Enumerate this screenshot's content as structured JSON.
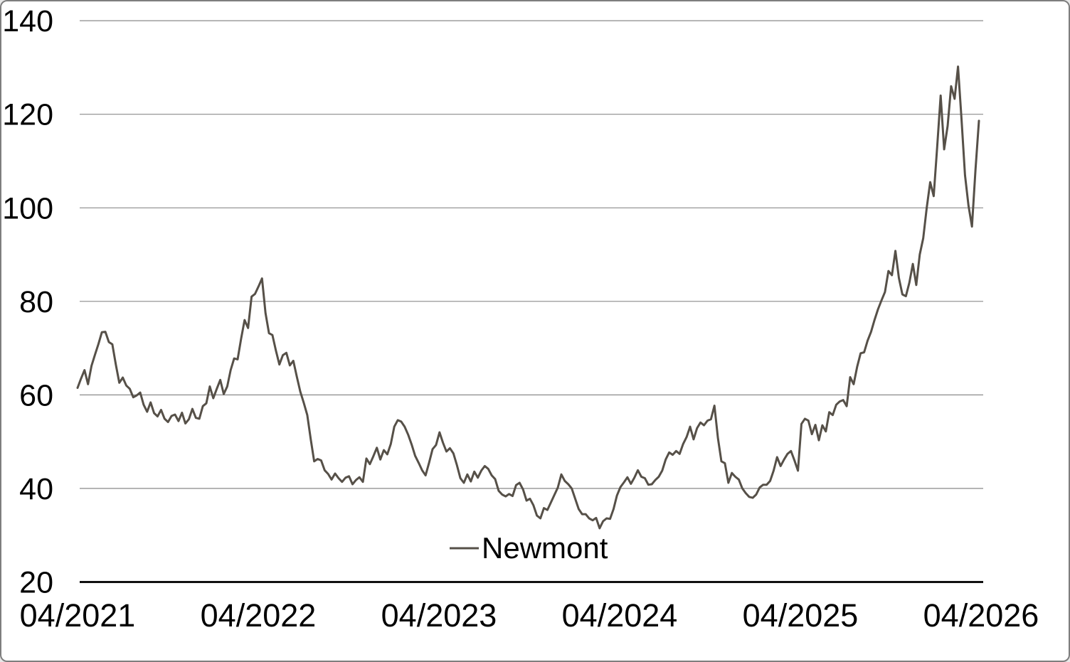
{
  "colors": {
    "background": "#ffffff",
    "frame_border": "#7e7e7e",
    "gridline": "#8a8a8a",
    "axis": "#111111",
    "text": "#000000",
    "series_line": "#565048"
  },
  "legend": {
    "label": "Newmont"
  },
  "chart_data": {
    "type": "line",
    "title": "",
    "xlabel": "",
    "ylabel": "",
    "grid": "horizontal-only",
    "x_axis": {
      "tick_labels": [
        "04/2021",
        "04/2022",
        "04/2023",
        "04/2024",
        "04/2025",
        "04/2026"
      ],
      "start": "04/2021",
      "end": "04/2026",
      "frequency": "weekly"
    },
    "y_axis": {
      "ticks": [
        140,
        120,
        100,
        80,
        60,
        40,
        20
      ],
      "range": [
        20,
        140
      ]
    },
    "legend": {
      "position": "bottom-center",
      "entries": [
        "Newmont"
      ]
    },
    "series": [
      {
        "name": "Newmont",
        "color": "#565048",
        "values": [
          61.5,
          63.5,
          65.3,
          62.3,
          66.2,
          68.6,
          70.9,
          73.4,
          73.5,
          71.3,
          70.8,
          66.5,
          62.6,
          63.7,
          62.0,
          61.3,
          59.5,
          59.9,
          60.5,
          57.9,
          56.4,
          58.4,
          56.1,
          55.4,
          56.8,
          54.9,
          54.2,
          55.5,
          55.8,
          54.4,
          56.2,
          53.9,
          54.8,
          57.0,
          55.1,
          54.9,
          57.6,
          58.2,
          61.8,
          59.3,
          61.3,
          63.2,
          60.2,
          61.8,
          65.3,
          67.8,
          67.6,
          72.0,
          76.0,
          74.3,
          81.0,
          81.6,
          83.2,
          84.9,
          77.5,
          73.2,
          72.8,
          69.5,
          66.5,
          68.5,
          69.0,
          66.3,
          67.3,
          63.9,
          60.7,
          58.3,
          55.7,
          50.5,
          45.8,
          46.3,
          46.0,
          43.9,
          43.1,
          41.9,
          43.2,
          42.2,
          41.4,
          42.3,
          42.6,
          40.9,
          41.8,
          42.4,
          41.4,
          46.4,
          45.2,
          46.9,
          48.7,
          46.2,
          48.2,
          47.3,
          49.5,
          53.2,
          54.6,
          54.3,
          53.2,
          51.5,
          49.4,
          47.0,
          45.5,
          43.9,
          42.8,
          45.5,
          48.4,
          49.3,
          52.0,
          49.8,
          47.9,
          48.6,
          47.5,
          45.0,
          42.2,
          41.2,
          43.0,
          41.5,
          43.6,
          42.3,
          43.8,
          44.8,
          44.2,
          42.8,
          42.0,
          39.5,
          38.7,
          38.3,
          38.8,
          38.4,
          40.7,
          41.2,
          39.8,
          37.4,
          37.8,
          36.4,
          34.2,
          33.6,
          35.8,
          35.4,
          37.0,
          38.6,
          40.2,
          43.0,
          41.6,
          40.9,
          40.0,
          37.8,
          35.6,
          34.5,
          34.5,
          33.6,
          33.2,
          33.7,
          31.5,
          33.0,
          33.6,
          33.5,
          35.6,
          38.5,
          40.3,
          41.3,
          42.4,
          41.0,
          42.3,
          43.9,
          42.5,
          42.2,
          40.8,
          40.9,
          41.8,
          42.5,
          43.8,
          46.2,
          47.7,
          47.2,
          48.0,
          47.4,
          49.5,
          51.0,
          53.2,
          50.5,
          52.9,
          54.1,
          53.5,
          54.5,
          54.8,
          57.7,
          50.8,
          45.8,
          45.4,
          41.2,
          43.3,
          42.5,
          41.9,
          40.0,
          39.0,
          38.2,
          38.0,
          38.7,
          40.2,
          40.8,
          40.8,
          41.6,
          43.8,
          46.7,
          44.8,
          46.2,
          47.4,
          48.0,
          46.0,
          43.8,
          53.8,
          54.9,
          54.5,
          51.6,
          53.6,
          50.3,
          53.5,
          52.2,
          56.3,
          55.7,
          57.9,
          58.6,
          58.9,
          57.6,
          63.8,
          62.3,
          66.0,
          68.9,
          69.1,
          71.6,
          73.5,
          76.0,
          78.3,
          80.2,
          82.0,
          86.5,
          85.6,
          90.8,
          85.0,
          81.5,
          81.1,
          84.0,
          88.0,
          83.5,
          90.0,
          93.5,
          100.0,
          105.5,
          102.5,
          113.0,
          124.0,
          112.5,
          117.5,
          126.0,
          123.3,
          130.2,
          119.0,
          107.0,
          100.5,
          96.0,
          108.0,
          118.6
        ]
      }
    ]
  }
}
